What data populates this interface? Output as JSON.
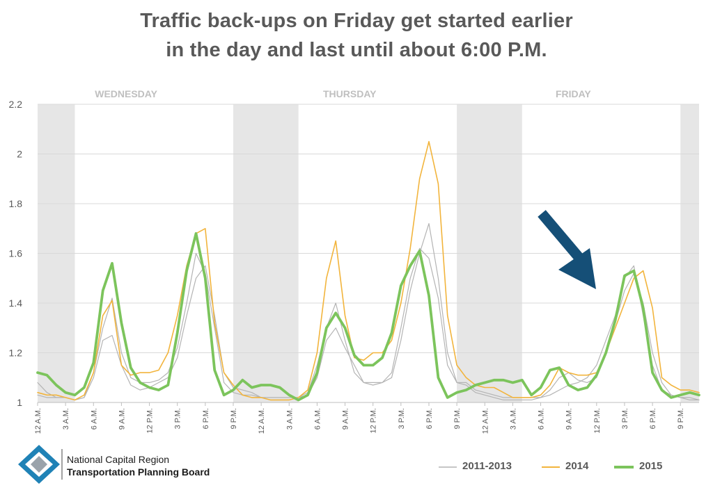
{
  "title": {
    "line1": "Traffic back-ups on Friday get started earlier",
    "line2": "in the day and last until about 6:00 P.M."
  },
  "logo": {
    "line1": "National Capital Region",
    "line2": "Transportation Planning Board"
  },
  "legend": [
    {
      "label": "2011-2013",
      "color": "#b3b3b3"
    },
    {
      "label": "2014",
      "color": "#f2b43c"
    },
    {
      "label": "2015",
      "color": "#7cc45c"
    }
  ],
  "arrow_color": "#154f77",
  "chart_data": {
    "type": "line",
    "ylim": [
      1,
      2.2
    ],
    "yticks": [
      "1",
      "1.2",
      "1.4",
      "1.6",
      "1.8",
      "2",
      "2.2"
    ],
    "day_labels": [
      "WEDNESDAY",
      "THURSDAY",
      "FRIDAY"
    ],
    "x_tick_labels": [
      "12 A.M.",
      "3 A.M.",
      "6 A.M.",
      "9 A.M.",
      "12 P.M.",
      "3 P.M.",
      "6 P.M.",
      "9 P.M.",
      "12 A.M.",
      "3 A.M.",
      "6 A.M.",
      "9 A.M.",
      "12 P.M.",
      "3 P.M.",
      "6 P.M.",
      "9 P.M.",
      "12 A.M.",
      "3 A.M.",
      "6 A.M.",
      "9 A.M.",
      "12 P.M.",
      "3 P.M.",
      "6 P.M.",
      "9 P.M."
    ],
    "x_tick_hours": [
      0,
      3,
      6,
      9,
      12,
      15,
      18,
      21,
      24,
      27,
      30,
      33,
      36,
      39,
      42,
      45,
      48,
      51,
      54,
      57,
      60,
      63,
      66,
      69
    ],
    "x_range_hours": [
      0,
      71
    ],
    "night_bands_hours": [
      [
        0,
        4
      ],
      [
        21,
        28
      ],
      [
        45,
        52
      ],
      [
        69,
        71
      ]
    ],
    "grid": true,
    "series": [
      {
        "name": "2011-2013",
        "color": "#b3b3b3",
        "width": 1.2,
        "values": [
          1.08,
          1.04,
          1.02,
          1.02,
          1.01,
          1.02,
          1.1,
          1.25,
          1.27,
          1.15,
          1.07,
          1.05,
          1.06,
          1.08,
          1.1,
          1.18,
          1.35,
          1.5,
          1.55,
          1.35,
          1.12,
          1.06,
          1.05,
          1.04,
          1.02,
          1.02,
          1.02,
          1.02,
          1.02,
          1.03,
          1.1,
          1.25,
          1.3,
          1.22,
          1.15,
          1.08,
          1.08,
          1.08,
          1.1,
          1.25,
          1.45,
          1.6,
          1.72,
          1.5,
          1.2,
          1.08,
          1.08,
          1.05,
          1.04,
          1.03,
          1.02,
          1.02,
          1.02,
          1.02,
          1.02,
          1.03,
          1.05,
          1.07,
          1.08,
          1.1,
          1.15,
          1.25,
          1.35,
          1.5,
          1.55,
          1.35,
          1.15,
          1.05,
          1.03,
          1.02,
          1.02,
          1.01
        ]
      },
      {
        "name": "2011-2013",
        "color": "#b3b3b3",
        "width": 1.2,
        "values": [
          1.03,
          1.02,
          1.02,
          1.02,
          1.01,
          1.02,
          1.12,
          1.3,
          1.42,
          1.2,
          1.1,
          1.08,
          1.08,
          1.09,
          1.12,
          1.22,
          1.4,
          1.6,
          1.52,
          1.3,
          1.08,
          1.04,
          1.03,
          1.03,
          1.02,
          1.01,
          1.01,
          1.01,
          1.02,
          1.04,
          1.15,
          1.3,
          1.4,
          1.25,
          1.12,
          1.08,
          1.07,
          1.08,
          1.12,
          1.3,
          1.5,
          1.62,
          1.58,
          1.42,
          1.15,
          1.08,
          1.07,
          1.04,
          1.03,
          1.02,
          1.01,
          1.01,
          1.01,
          1.01,
          1.02,
          1.05,
          1.1,
          1.12,
          1.09,
          1.08,
          1.1,
          1.2,
          1.32,
          1.45,
          1.52,
          1.4,
          1.2,
          1.08,
          1.03,
          1.02,
          1.01,
          1.01
        ]
      },
      {
        "name": "2014",
        "color": "#f2b43c",
        "width": 1.6,
        "values": [
          1.04,
          1.03,
          1.03,
          1.02,
          1.01,
          1.03,
          1.12,
          1.35,
          1.41,
          1.15,
          1.11,
          1.12,
          1.12,
          1.13,
          1.2,
          1.35,
          1.55,
          1.68,
          1.7,
          1.32,
          1.12,
          1.07,
          1.03,
          1.02,
          1.02,
          1.01,
          1.01,
          1.01,
          1.02,
          1.05,
          1.2,
          1.5,
          1.65,
          1.35,
          1.18,
          1.17,
          1.2,
          1.2,
          1.25,
          1.4,
          1.62,
          1.9,
          2.05,
          1.88,
          1.35,
          1.15,
          1.1,
          1.07,
          1.06,
          1.06,
          1.04,
          1.02,
          1.02,
          1.02,
          1.03,
          1.07,
          1.14,
          1.12,
          1.11,
          1.11,
          1.12,
          1.2,
          1.3,
          1.4,
          1.5,
          1.53,
          1.38,
          1.1,
          1.07,
          1.05,
          1.05,
          1.04
        ]
      },
      {
        "name": "2015",
        "color": "#7cc45c",
        "width": 3.8,
        "values": [
          1.12,
          1.11,
          1.07,
          1.04,
          1.03,
          1.06,
          1.16,
          1.45,
          1.56,
          1.32,
          1.14,
          1.08,
          1.06,
          1.05,
          1.07,
          1.28,
          1.53,
          1.68,
          1.5,
          1.13,
          1.03,
          1.05,
          1.09,
          1.06,
          1.07,
          1.07,
          1.06,
          1.03,
          1.01,
          1.03,
          1.12,
          1.3,
          1.36,
          1.3,
          1.19,
          1.15,
          1.15,
          1.18,
          1.28,
          1.47,
          1.55,
          1.61,
          1.43,
          1.1,
          1.02,
          1.04,
          1.05,
          1.07,
          1.08,
          1.09,
          1.09,
          1.08,
          1.09,
          1.03,
          1.06,
          1.13,
          1.14,
          1.07,
          1.05,
          1.06,
          1.11,
          1.2,
          1.33,
          1.51,
          1.53,
          1.38,
          1.12,
          1.05,
          1.02,
          1.03,
          1.04,
          1.03
        ]
      }
    ]
  }
}
